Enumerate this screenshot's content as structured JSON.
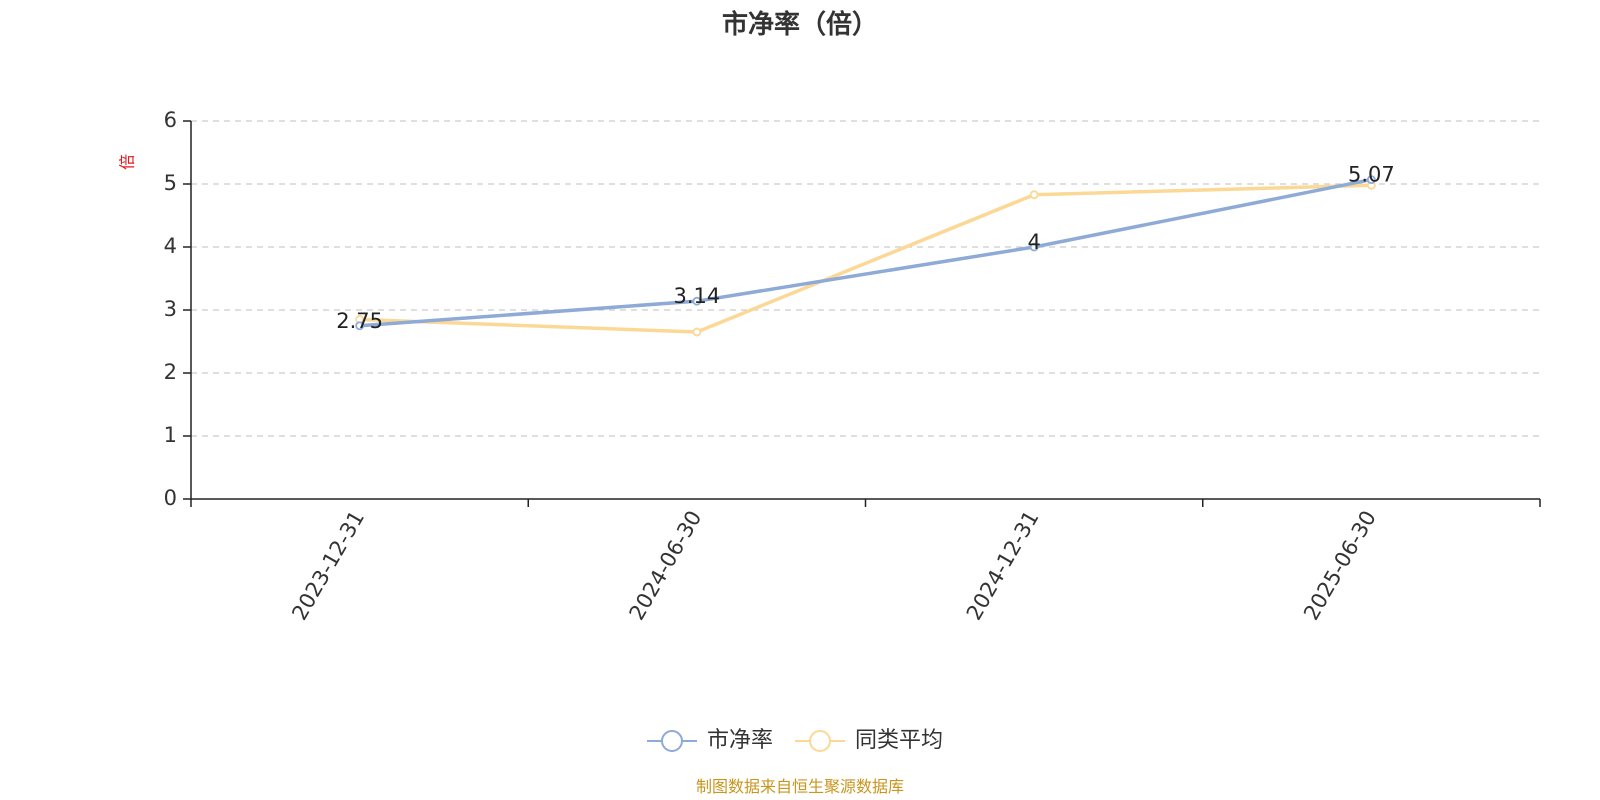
{
  "chart_data": {
    "type": "line",
    "title": "市净率（倍）",
    "ylabel": "倍",
    "xlabel": "",
    "categories": [
      "2023-12-31",
      "2024-06-30",
      "2024-12-31",
      "2025-06-30"
    ],
    "yticks": [
      0,
      1,
      2,
      3,
      4,
      5,
      6
    ],
    "ylim": [
      0,
      6
    ],
    "grid": true,
    "legend_position": "bottom-center",
    "series": [
      {
        "name": "市净率",
        "values": [
          2.75,
          3.14,
          4.0,
          5.07
        ],
        "color": "#8eaad6",
        "data_labels": [
          "2.75",
          "3.14",
          "4",
          "5.07"
        ]
      },
      {
        "name": "同类平均",
        "values": [
          2.85,
          2.65,
          4.83,
          4.98
        ],
        "color": "#fbd896"
      }
    ]
  },
  "footer": {
    "source": "制图数据来自恒生聚源数据库"
  }
}
